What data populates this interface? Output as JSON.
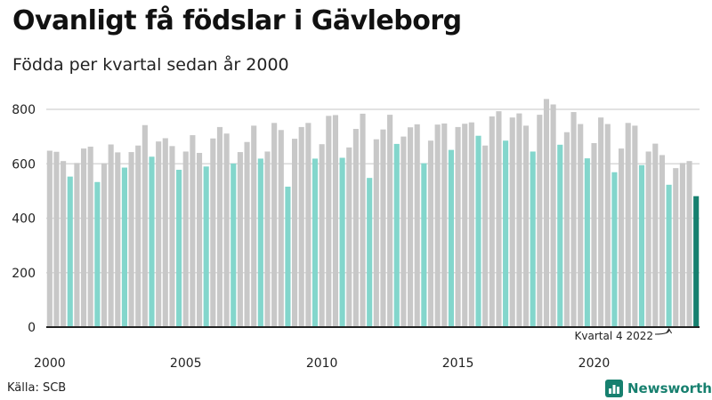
{
  "title": "Ovanligt få födslar i Gävleborg",
  "subtitle": "Födda per kvartal sedan år 2000",
  "source": "Källa: SCB",
  "brand": {
    "name": "Newsworthy",
    "icon": "newsworthy-logo-icon"
  },
  "colors": {
    "default": "#c8c8c8",
    "q4": "#83d6cc",
    "latest": "#17806f",
    "grid": "#d9d9d9",
    "axis": "#222222"
  },
  "chart_data": {
    "type": "bar",
    "title": "Ovanligt få födslar i Gävleborg",
    "subtitle": "Födda per kvartal sedan år 2000",
    "xlabel": "",
    "ylabel": "",
    "ylim": [
      0,
      850
    ],
    "yticks": [
      0,
      200,
      400,
      600,
      800
    ],
    "ytick_labels": [
      "0",
      "200",
      "400",
      "600",
      "800"
    ],
    "xticks": [
      "2000",
      "2005",
      "2010",
      "2015",
      "2020"
    ],
    "start_year": 2000,
    "quarters_per_year": 4,
    "series": [
      {
        "name": "Födda per kvartal",
        "values": [
          648,
          644,
          610,
          553,
          603,
          656,
          663,
          533,
          602,
          671,
          642,
          586,
          643,
          667,
          742,
          626,
          682,
          694,
          665,
          578,
          645,
          705,
          640,
          590,
          693,
          735,
          711,
          601,
          643,
          680,
          740,
          619,
          645,
          750,
          724,
          516,
          692,
          735,
          750,
          619,
          672,
          776,
          779,
          622,
          660,
          728,
          784,
          548,
          690,
          726,
          780,
          673,
          700,
          734,
          745,
          602,
          685,
          744,
          748,
          651,
          735,
          747,
          752,
          703,
          667,
          774,
          793,
          685,
          770,
          785,
          740,
          645,
          780,
          838,
          818,
          670,
          716,
          790,
          746,
          620,
          676,
          770,
          746,
          569,
          656,
          750,
          740,
          595,
          645,
          674,
          632,
          523,
          584,
          603,
          610,
          481
        ]
      }
    ],
    "highlight": "Q4 bars teal; latest bar dark teal",
    "annotations": [
      {
        "text": "Kvartal 4 2022",
        "target": "2022 Q4"
      }
    ]
  }
}
